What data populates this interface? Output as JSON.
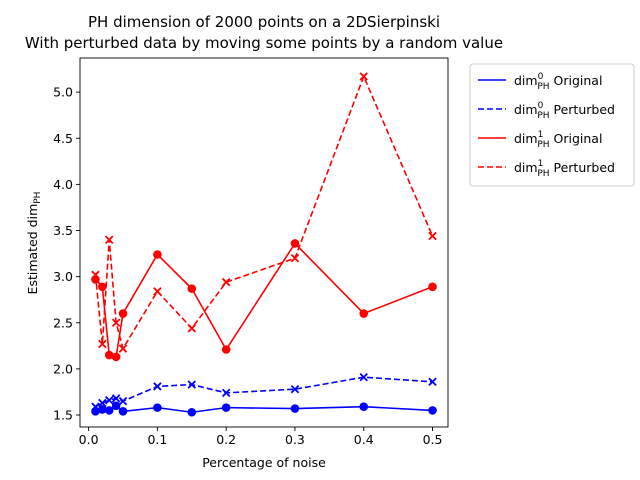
{
  "chart_data": {
    "type": "line",
    "title": [
      "PH dimension of 2000 points on a 2DSierpinski",
      "With perturbed data by moving some points by a random value"
    ],
    "xlabel": "Percentage of noise",
    "ylabel": "Estimated dim",
    "ylabel_sub": "PH",
    "xlim": [
      -0.0125,
      0.5225
    ],
    "ylim": [
      1.37,
      5.37
    ],
    "xticks": [
      0.0,
      0.1,
      0.2,
      0.3,
      0.4,
      0.5
    ],
    "xtick_labels": [
      "0.0",
      "0.1",
      "0.2",
      "0.3",
      "0.4",
      "0.5"
    ],
    "yticks": [
      1.5,
      2.0,
      2.5,
      3.0,
      3.5,
      4.0,
      4.5,
      5.0
    ],
    "ytick_labels": [
      "1.5",
      "2.0",
      "2.5",
      "3.0",
      "3.5",
      "4.0",
      "4.5",
      "5.0"
    ],
    "x": [
      0.01,
      0.02,
      0.03,
      0.04,
      0.05,
      0.1,
      0.15,
      0.2,
      0.3,
      0.4,
      0.5
    ],
    "legend_position": "outside-right",
    "series": [
      {
        "name": "dim⁰PH Original",
        "legend_base": "dim",
        "legend_sup": "0",
        "legend_sub": "PH",
        "legend_rest": " Original",
        "color": "#0000ff",
        "dashed": false,
        "marker": "circle",
        "values": [
          1.54,
          1.56,
          1.55,
          1.6,
          1.54,
          1.58,
          1.53,
          1.58,
          1.57,
          1.59,
          1.55
        ]
      },
      {
        "name": "dim⁰PH Perturbed",
        "legend_base": "dim",
        "legend_sup": "0",
        "legend_sub": "PH",
        "legend_rest": " Perturbed",
        "color": "#0000ff",
        "dashed": true,
        "marker": "x",
        "values": [
          1.59,
          1.63,
          1.66,
          1.68,
          1.65,
          1.81,
          1.83,
          1.74,
          1.78,
          1.91,
          1.86
        ]
      },
      {
        "name": "dim¹PH Original",
        "legend_base": "dim",
        "legend_sup": "1",
        "legend_sub": "PH",
        "legend_rest": " Original",
        "color": "#ff0000",
        "dashed": false,
        "marker": "circle",
        "values": [
          2.97,
          2.89,
          2.15,
          2.13,
          2.6,
          3.24,
          2.87,
          2.21,
          3.36,
          2.6,
          2.89
        ]
      },
      {
        "name": "dim¹PH Perturbed",
        "legend_base": "dim",
        "legend_sup": "1",
        "legend_sub": "PH",
        "legend_rest": " Perturbed",
        "color": "#ff0000",
        "dashed": true,
        "marker": "x",
        "values": [
          3.02,
          2.27,
          3.4,
          2.5,
          2.22,
          2.84,
          2.44,
          2.94,
          3.2,
          5.17,
          3.44
        ]
      }
    ]
  }
}
